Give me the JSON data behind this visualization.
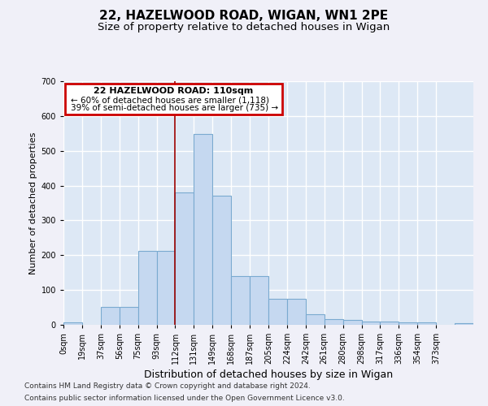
{
  "title": "22, HAZELWOOD ROAD, WIGAN, WN1 2PE",
  "subtitle": "Size of property relative to detached houses in Wigan",
  "xlabel": "Distribution of detached houses by size in Wigan",
  "ylabel": "Number of detached properties",
  "bar_values": [
    7,
    0,
    52,
    52,
    213,
    213,
    380,
    548,
    370,
    140,
    140,
    75,
    75,
    30,
    17,
    13,
    10,
    10,
    7,
    7,
    0,
    5
  ],
  "bin_width": 18.5,
  "num_bins": 22,
  "bar_color": "#c5d8f0",
  "bar_edge_color": "#7aaad0",
  "highlight_x": 111,
  "highlight_color": "#990000",
  "xlim": [
    0,
    407
  ],
  "ylim": [
    0,
    700
  ],
  "yticks": [
    0,
    100,
    200,
    300,
    400,
    500,
    600,
    700
  ],
  "xtick_labels": [
    "0sqm",
    "19sqm",
    "37sqm",
    "56sqm",
    "75sqm",
    "93sqm",
    "112sqm",
    "131sqm",
    "149sqm",
    "168sqm",
    "187sqm",
    "205sqm",
    "224sqm",
    "242sqm",
    "261sqm",
    "280sqm",
    "298sqm",
    "317sqm",
    "336sqm",
    "354sqm",
    "373sqm"
  ],
  "annotation_title": "22 HAZELWOOD ROAD: 110sqm",
  "annotation_line1": "← 60% of detached houses are smaller (1,118)",
  "annotation_line2": "39% of semi-detached houses are larger (735) →",
  "annotation_box_edge_color": "#cc0000",
  "footer1": "Contains HM Land Registry data © Crown copyright and database right 2024.",
  "footer2": "Contains public sector information licensed under the Open Government Licence v3.0.",
  "bg_color": "#dde8f5",
  "fig_bg_color": "#f0f0f8",
  "grid_color": "#ffffff",
  "title_fontsize": 11,
  "subtitle_fontsize": 9.5,
  "xlabel_fontsize": 9,
  "ylabel_fontsize": 8,
  "tick_fontsize": 7,
  "annot_title_fontsize": 8,
  "annot_text_fontsize": 7.5,
  "footer_fontsize": 6.5
}
